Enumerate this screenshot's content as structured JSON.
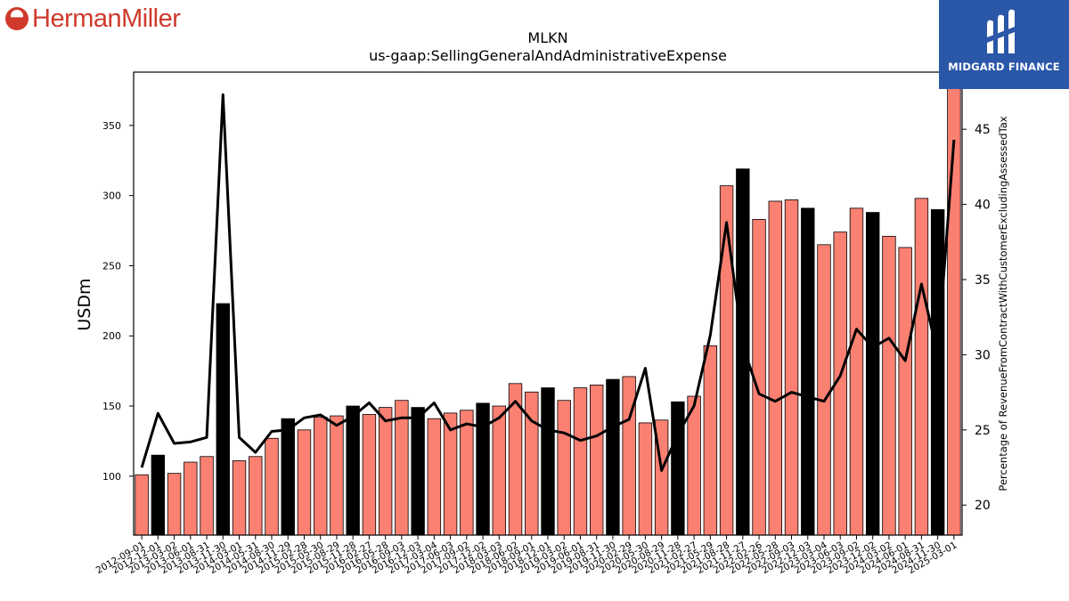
{
  "logos": {
    "left_text": "HermanMiller",
    "right_text": "MIDGARD FINANCE"
  },
  "colors": {
    "bar_default": "#fa8072",
    "bar_highlight": "#000000",
    "line": "#000000",
    "logo_left": "#cf3a2c",
    "logo_right_bg": "#2b57a8"
  },
  "chart_data": {
    "type": "bar",
    "title": "MLKN",
    "subtitle": "us-gaap:SellingGeneralAndAdministrativeExpense",
    "ylabel": "USDm",
    "y2label": "Percentage of RevenueFromContractWithCustomerExcludingAssessedTax",
    "ylim": [
      58,
      388
    ],
    "y2lim": [
      18,
      48.8
    ],
    "yticks": [
      100,
      150,
      200,
      250,
      300,
      350
    ],
    "y2ticks": [
      20,
      25,
      30,
      35,
      40,
      45
    ],
    "grid": false,
    "categories": [
      "2012-09-01",
      "2012-12-01",
      "2013-03-02",
      "2013-06-01",
      "2013-08-31",
      "2013-11-30",
      "2014-03-01",
      "2014-05-31",
      "2014-08-30",
      "2014-11-29",
      "2015-02-28",
      "2015-05-30",
      "2015-08-29",
      "2015-11-28",
      "2016-02-27",
      "2016-05-28",
      "2016-09-03",
      "2016-12-03",
      "2017-03-04",
      "2017-06-03",
      "2017-09-02",
      "2017-12-02",
      "2018-03-03",
      "2018-06-02",
      "2018-09-01",
      "2018-12-01",
      "2019-03-02",
      "2019-06-01",
      "2019-08-31",
      "2019-11-30",
      "2020-02-29",
      "2020-05-30",
      "2020-08-29",
      "2020-11-28",
      "2021-02-27",
      "2021-05-29",
      "2021-08-28",
      "2021-11-27",
      "2022-02-26",
      "2022-05-28",
      "2022-09-03",
      "2022-12-03",
      "2023-03-04",
      "2023-06-03",
      "2023-09-02",
      "2023-12-02",
      "2024-03-02",
      "2024-06-01",
      "2024-08-31",
      "2024-11-30",
      "2025-03-01"
    ],
    "series": [
      {
        "type": "bar",
        "values": [
          101,
          115,
          102,
          110,
          114,
          223,
          111,
          114,
          127,
          141,
          133,
          142,
          143,
          150,
          144,
          149,
          154,
          149,
          141,
          145,
          147,
          152,
          150,
          166,
          160,
          163,
          154,
          163,
          165,
          169,
          171,
          138,
          140,
          153,
          157,
          193,
          307,
          319,
          283,
          296,
          297,
          291,
          265,
          274,
          291,
          288,
          271,
          263,
          298,
          290,
          390
        ],
        "highlight": [
          false,
          true,
          false,
          false,
          false,
          true,
          false,
          false,
          false,
          true,
          false,
          false,
          false,
          true,
          false,
          false,
          false,
          true,
          false,
          false,
          false,
          true,
          false,
          false,
          false,
          true,
          false,
          false,
          false,
          true,
          false,
          false,
          false,
          true,
          false,
          false,
          false,
          true,
          false,
          false,
          false,
          true,
          false,
          false,
          false,
          true,
          false,
          false,
          false,
          true,
          false
        ]
      },
      {
        "type": "line",
        "axis": "right",
        "values": [
          22.5,
          26.1,
          24.1,
          24.2,
          24.5,
          47.3,
          24.5,
          23.5,
          24.9,
          25.0,
          25.8,
          26.0,
          25.3,
          25.9,
          26.8,
          25.6,
          25.8,
          25.8,
          26.8,
          25.0,
          25.4,
          25.2,
          25.8,
          26.9,
          25.6,
          25.0,
          24.8,
          24.3,
          24.6,
          25.2,
          25.7,
          29.1,
          22.3,
          24.7,
          26.6,
          31.3,
          38.8,
          30.6,
          27.4,
          26.9,
          27.5,
          27.2,
          26.9,
          28.6,
          31.7,
          30.5,
          31.1,
          29.6,
          34.7,
          30.0,
          44.3
        ]
      }
    ]
  }
}
